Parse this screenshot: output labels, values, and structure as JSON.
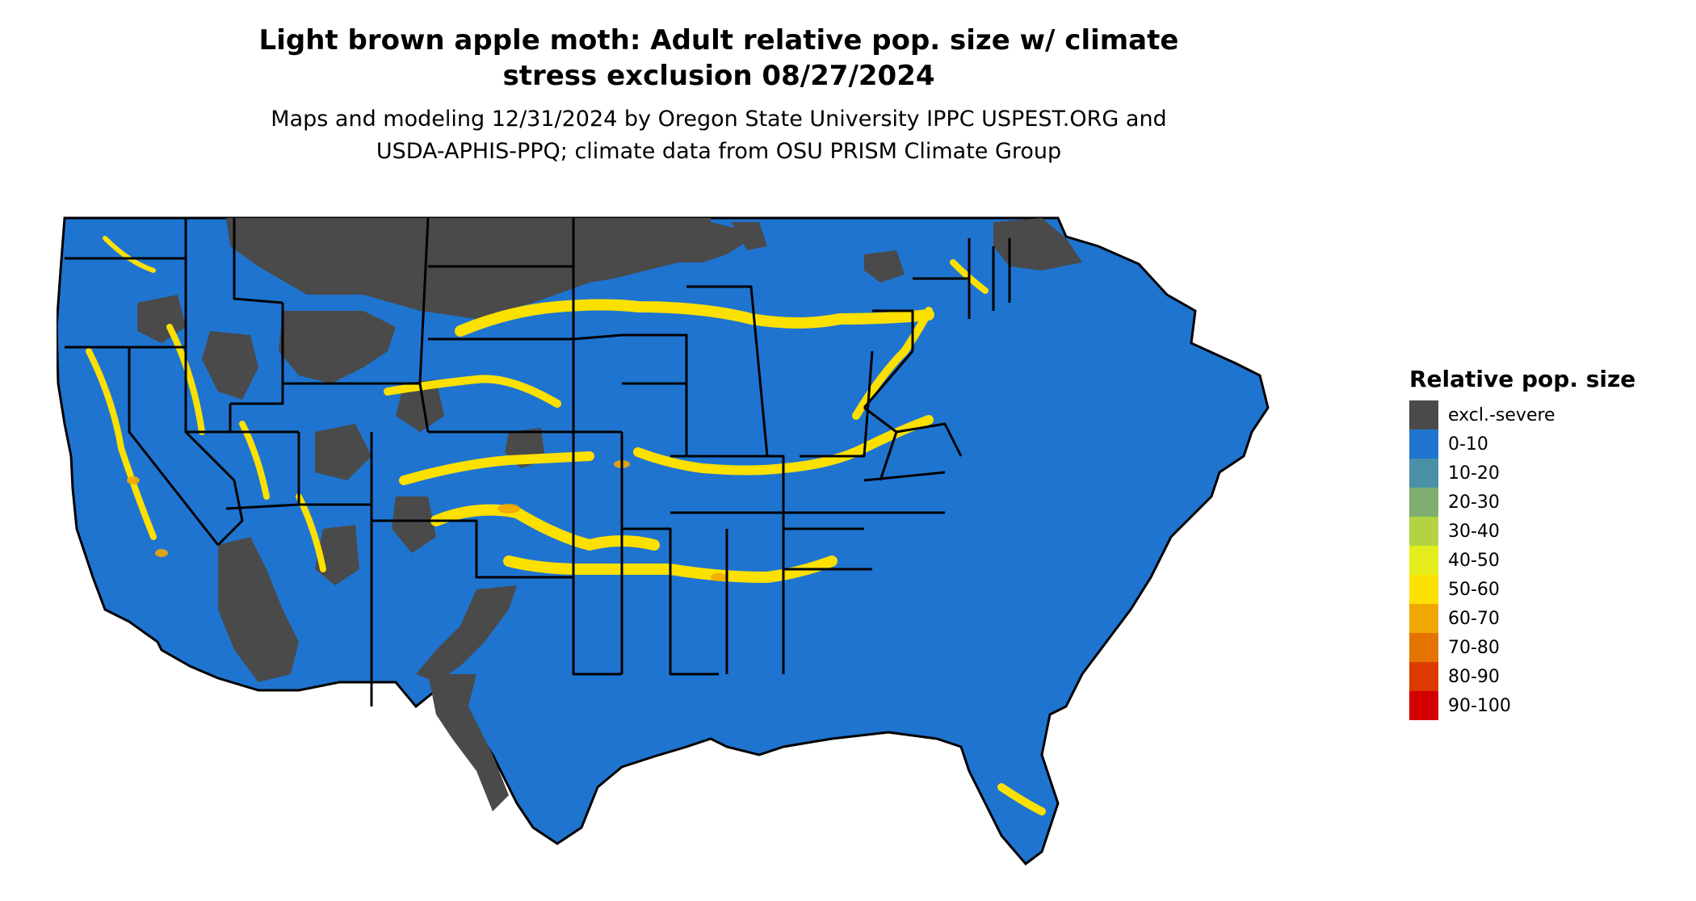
{
  "title_line1": "Light brown apple moth: Adult relative pop. size w/ climate",
  "title_line2": "stress exclusion 08/27/2024",
  "subtitle_line1": "Maps and modeling 12/31/2024 by Oregon State University IPPC USPEST.ORG and",
  "subtitle_line2": "USDA-APHIS-PPQ; climate data from OSU PRISM Climate Group",
  "legend": {
    "title": "Relative pop. size",
    "items": [
      {
        "label": "excl.-severe",
        "color": "#4a4a4a"
      },
      {
        "label": "0-10",
        "color": "#1f74d0"
      },
      {
        "label": "10-20",
        "color": "#4a90a6"
      },
      {
        "label": "20-30",
        "color": "#7fae6f"
      },
      {
        "label": "30-40",
        "color": "#b3d244"
      },
      {
        "label": "40-50",
        "color": "#e4ee1c"
      },
      {
        "label": "50-60",
        "color": "#fbe000"
      },
      {
        "label": "60-70",
        "color": "#f0a800"
      },
      {
        "label": "70-80",
        "color": "#e47400"
      },
      {
        "label": "80-90",
        "color": "#dc3a00"
      },
      {
        "label": "90-100",
        "color": "#d20000"
      }
    ]
  },
  "map": {
    "region": "contiguous United States",
    "colors": {
      "excluded": "#4a4a4a",
      "low": "#1f74d0",
      "mid": "#fbe000",
      "border": "#000000"
    }
  }
}
